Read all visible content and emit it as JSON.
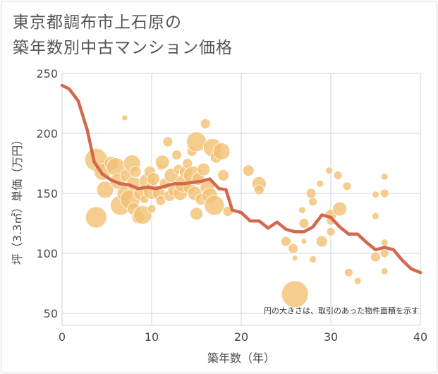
{
  "title_line1": "東京都調布市上石原の",
  "title_line2": "築年数別中古マンション価格",
  "chart_data": {
    "type": "scatter",
    "xlabel": "築年数（年）",
    "ylabel": "坪（3.3㎡）単価（万円）",
    "xlim": [
      0,
      40
    ],
    "ylim": [
      40,
      250
    ],
    "xticks": [
      0,
      10,
      20,
      30,
      40
    ],
    "yticks": [
      50,
      100,
      150,
      200,
      250
    ],
    "grid": true,
    "note": "円の大きさは、取引のあった物件面積を示す",
    "bubble_color": "#f2c173",
    "line_color": "#d2694f",
    "line": {
      "x": [
        0,
        0.8,
        1.8,
        2.8,
        3.6,
        4.5,
        5.5,
        6.5,
        7.5,
        8.5,
        9.5,
        10.5,
        11.5,
        12.5,
        13.5,
        14.5,
        15.5,
        16.5,
        17.5,
        18.3,
        19,
        20,
        21,
        22,
        23,
        24,
        25,
        26,
        27,
        28,
        29,
        30,
        31,
        32,
        33,
        34,
        35,
        36,
        37,
        38,
        39,
        40
      ],
      "y": [
        240,
        237,
        227,
        203,
        176,
        166,
        161,
        158,
        157,
        154,
        155,
        154,
        156,
        158,
        158,
        159,
        160,
        162,
        154,
        153,
        136,
        134,
        127,
        127,
        121,
        126,
        120,
        118,
        118,
        122,
        132,
        130,
        122,
        116,
        116,
        109,
        103,
        105,
        103,
        94,
        87,
        84
      ]
    },
    "points": [
      {
        "x": 3.8,
        "y": 178,
        "s": 16
      },
      {
        "x": 3.8,
        "y": 130,
        "s": 15
      },
      {
        "x": 4.5,
        "y": 168,
        "s": 12
      },
      {
        "x": 4.8,
        "y": 153,
        "s": 12
      },
      {
        "x": 5.5,
        "y": 175,
        "s": 10
      },
      {
        "x": 6,
        "y": 172,
        "s": 13
      },
      {
        "x": 6.2,
        "y": 160,
        "s": 11
      },
      {
        "x": 6.5,
        "y": 140,
        "s": 14
      },
      {
        "x": 7,
        "y": 213,
        "s": 4
      },
      {
        "x": 7,
        "y": 150,
        "s": 11
      },
      {
        "x": 7.2,
        "y": 165,
        "s": 9
      },
      {
        "x": 7.6,
        "y": 145,
        "s": 14
      },
      {
        "x": 7.8,
        "y": 175,
        "s": 12
      },
      {
        "x": 8,
        "y": 158,
        "s": 10
      },
      {
        "x": 8,
        "y": 137,
        "s": 9
      },
      {
        "x": 8.2,
        "y": 168,
        "s": 8
      },
      {
        "x": 8.5,
        "y": 130,
        "s": 9
      },
      {
        "x": 8.8,
        "y": 150,
        "s": 10
      },
      {
        "x": 9,
        "y": 132,
        "s": 13
      },
      {
        "x": 9.2,
        "y": 145,
        "s": 6
      },
      {
        "x": 9.5,
        "y": 160,
        "s": 11
      },
      {
        "x": 9.8,
        "y": 168,
        "s": 8
      },
      {
        "x": 10,
        "y": 152,
        "s": 12
      },
      {
        "x": 10,
        "y": 137,
        "s": 6
      },
      {
        "x": 10.2,
        "y": 162,
        "s": 9
      },
      {
        "x": 10.8,
        "y": 150,
        "s": 9
      },
      {
        "x": 11,
        "y": 144,
        "s": 7
      },
      {
        "x": 11,
        "y": 172,
        "s": 5
      },
      {
        "x": 11.2,
        "y": 176,
        "s": 10
      },
      {
        "x": 11.5,
        "y": 158,
        "s": 8
      },
      {
        "x": 11.8,
        "y": 193,
        "s": 7
      },
      {
        "x": 12,
        "y": 148,
        "s": 8
      },
      {
        "x": 12.2,
        "y": 165,
        "s": 10
      },
      {
        "x": 12.5,
        "y": 153,
        "s": 9
      },
      {
        "x": 12.8,
        "y": 182,
        "s": 7
      },
      {
        "x": 13,
        "y": 170,
        "s": 7
      },
      {
        "x": 13.2,
        "y": 150,
        "s": 10
      },
      {
        "x": 13.5,
        "y": 158,
        "s": 12
      },
      {
        "x": 13.8,
        "y": 168,
        "s": 9
      },
      {
        "x": 14,
        "y": 175,
        "s": 7
      },
      {
        "x": 14.2,
        "y": 155,
        "s": 9
      },
      {
        "x": 14.5,
        "y": 185,
        "s": 7
      },
      {
        "x": 14.6,
        "y": 165,
        "s": 13
      },
      {
        "x": 14.8,
        "y": 150,
        "s": 10
      },
      {
        "x": 15,
        "y": 193,
        "s": 14
      },
      {
        "x": 15,
        "y": 133,
        "s": 9
      },
      {
        "x": 15.2,
        "y": 162,
        "s": 9
      },
      {
        "x": 15.5,
        "y": 145,
        "s": 8
      },
      {
        "x": 15.8,
        "y": 170,
        "s": 9
      },
      {
        "x": 16,
        "y": 208,
        "s": 7
      },
      {
        "x": 16.2,
        "y": 155,
        "s": 10
      },
      {
        "x": 16.5,
        "y": 148,
        "s": 11
      },
      {
        "x": 16.8,
        "y": 188,
        "s": 13
      },
      {
        "x": 17,
        "y": 140,
        "s": 14
      },
      {
        "x": 17.2,
        "y": 180,
        "s": 8
      },
      {
        "x": 17.8,
        "y": 185,
        "s": 12
      },
      {
        "x": 18,
        "y": 165,
        "s": 8
      },
      {
        "x": 18.5,
        "y": 135,
        "s": 7
      },
      {
        "x": 20.8,
        "y": 169,
        "s": 8
      },
      {
        "x": 22,
        "y": 158,
        "s": 10
      },
      {
        "x": 22,
        "y": 153,
        "s": 7
      },
      {
        "x": 25,
        "y": 110,
        "s": 7
      },
      {
        "x": 25.8,
        "y": 104,
        "s": 7
      },
      {
        "x": 26,
        "y": 96,
        "s": 4
      },
      {
        "x": 26,
        "y": 66,
        "s": 19
      },
      {
        "x": 26.8,
        "y": 136,
        "s": 5
      },
      {
        "x": 27,
        "y": 125,
        "s": 7
      },
      {
        "x": 27,
        "y": 110,
        "s": 4
      },
      {
        "x": 27.8,
        "y": 150,
        "s": 7
      },
      {
        "x": 28,
        "y": 143,
        "s": 6
      },
      {
        "x": 28,
        "y": 95,
        "s": 5
      },
      {
        "x": 28.8,
        "y": 158,
        "s": 5
      },
      {
        "x": 29,
        "y": 110,
        "s": 8
      },
      {
        "x": 29.8,
        "y": 169,
        "s": 5
      },
      {
        "x": 30,
        "y": 132,
        "s": 8
      },
      {
        "x": 30,
        "y": 127,
        "s": 6
      },
      {
        "x": 30,
        "y": 118,
        "s": 6
      },
      {
        "x": 30.8,
        "y": 165,
        "s": 6
      },
      {
        "x": 31,
        "y": 137,
        "s": 10
      },
      {
        "x": 31.8,
        "y": 156,
        "s": 6
      },
      {
        "x": 32,
        "y": 84,
        "s": 6
      },
      {
        "x": 33,
        "y": 77,
        "s": 5
      },
      {
        "x": 35,
        "y": 149,
        "s": 5
      },
      {
        "x": 35,
        "y": 131,
        "s": 5
      },
      {
        "x": 35,
        "y": 97,
        "s": 7
      },
      {
        "x": 36,
        "y": 164,
        "s": 5
      },
      {
        "x": 36,
        "y": 150,
        "s": 6
      },
      {
        "x": 36,
        "y": 109,
        "s": 5
      },
      {
        "x": 36,
        "y": 100,
        "s": 6
      },
      {
        "x": 36,
        "y": 85,
        "s": 5
      }
    ]
  }
}
